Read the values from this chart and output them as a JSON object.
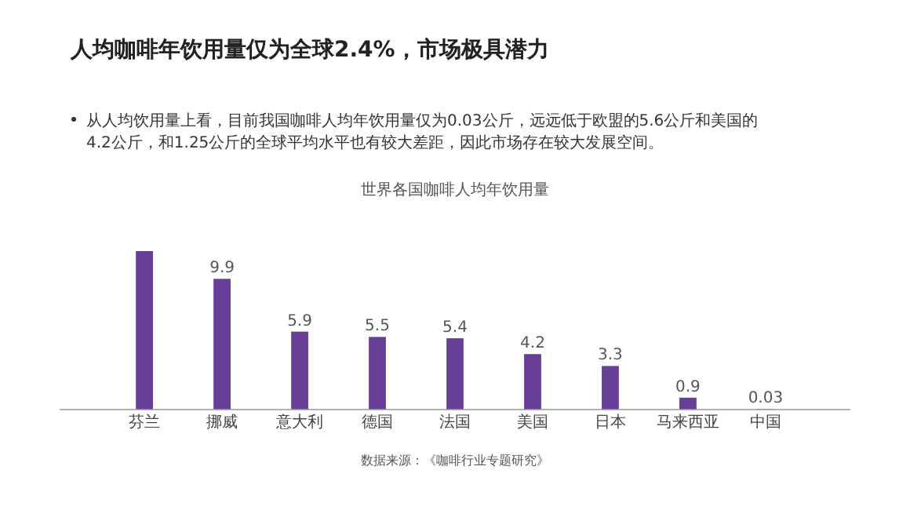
{
  "chart_data": {
    "type": "bar",
    "title": "人均咖啡年饮用量仅为全球2.4%，市场极具潜力",
    "subtitle": "从人均饮用量上看，目前我国咖啡人均年饮用量仅为0.03公斤，远远低于欧盟的5.6公斤和美国的4.2公斤，和1.25公斤的全球平均水平也有较大差距，因此市场存在较大发展空间。",
    "annotations": [
      "世界各国咖啡人均年饮用量",
      "数据来源：《咖啡行业专题研究》"
    ],
    "categories": [
      "芬兰",
      "挪威",
      "意大利",
      "德国",
      "法国",
      "美国",
      "日本",
      "马来西亚",
      "中国"
    ],
    "values": [
      12,
      9.9,
      5.9,
      5.5,
      5.4,
      4.2,
      3.3,
      0.9,
      0.03
    ],
    "value_labels": [
      null,
      "9.9",
      "5.9",
      "5.5",
      "5.4",
      "4.2",
      "3.3",
      "0.9",
      "0.03"
    ],
    "color": "#673f98"
  }
}
